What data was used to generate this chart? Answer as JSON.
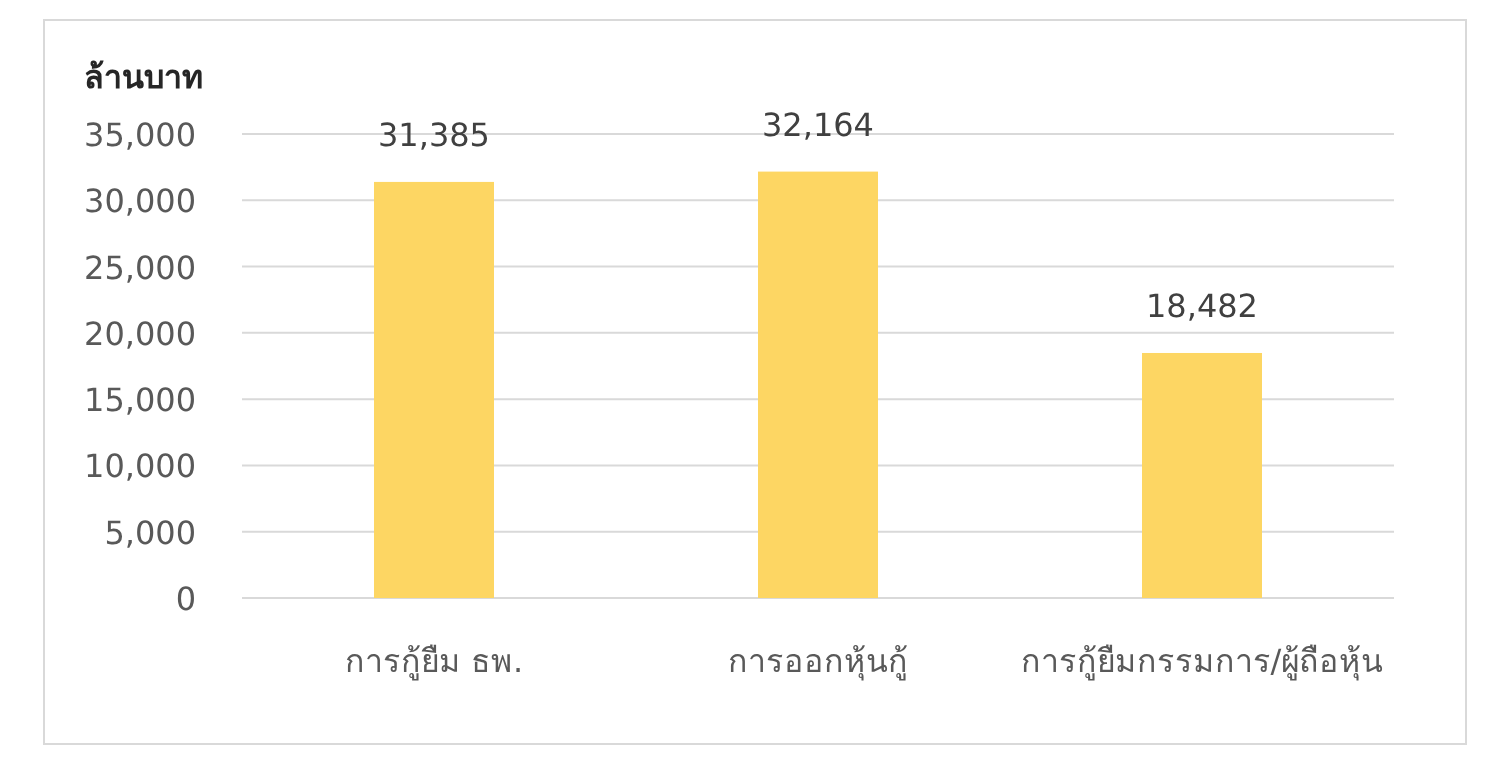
{
  "chart_data": {
    "type": "bar",
    "ylabel": "ล้านบาท",
    "categories": [
      "การกู้ยืม ธพ.",
      "การออกหุ้นกู้",
      "การกู้ยืมกรรมการ/ผู้ถือหุ้น"
    ],
    "values": [
      31385,
      32164,
      18482
    ],
    "color": "#fdd663",
    "value_labels": [
      "31,385",
      "32,164",
      "18,482"
    ],
    "ylim": [
      0,
      35000
    ],
    "yticks": [
      {
        "value": 0,
        "label": "0"
      },
      {
        "value": 5000,
        "label": "5,000"
      },
      {
        "value": 10000,
        "label": "10,000"
      },
      {
        "value": 15000,
        "label": "15,000"
      },
      {
        "value": 20000,
        "label": "20,000"
      },
      {
        "value": 25000,
        "label": "25,000"
      },
      {
        "value": 30000,
        "label": "30,000"
      },
      {
        "value": 35000,
        "label": "35,000"
      }
    ],
    "grid": "y"
  }
}
